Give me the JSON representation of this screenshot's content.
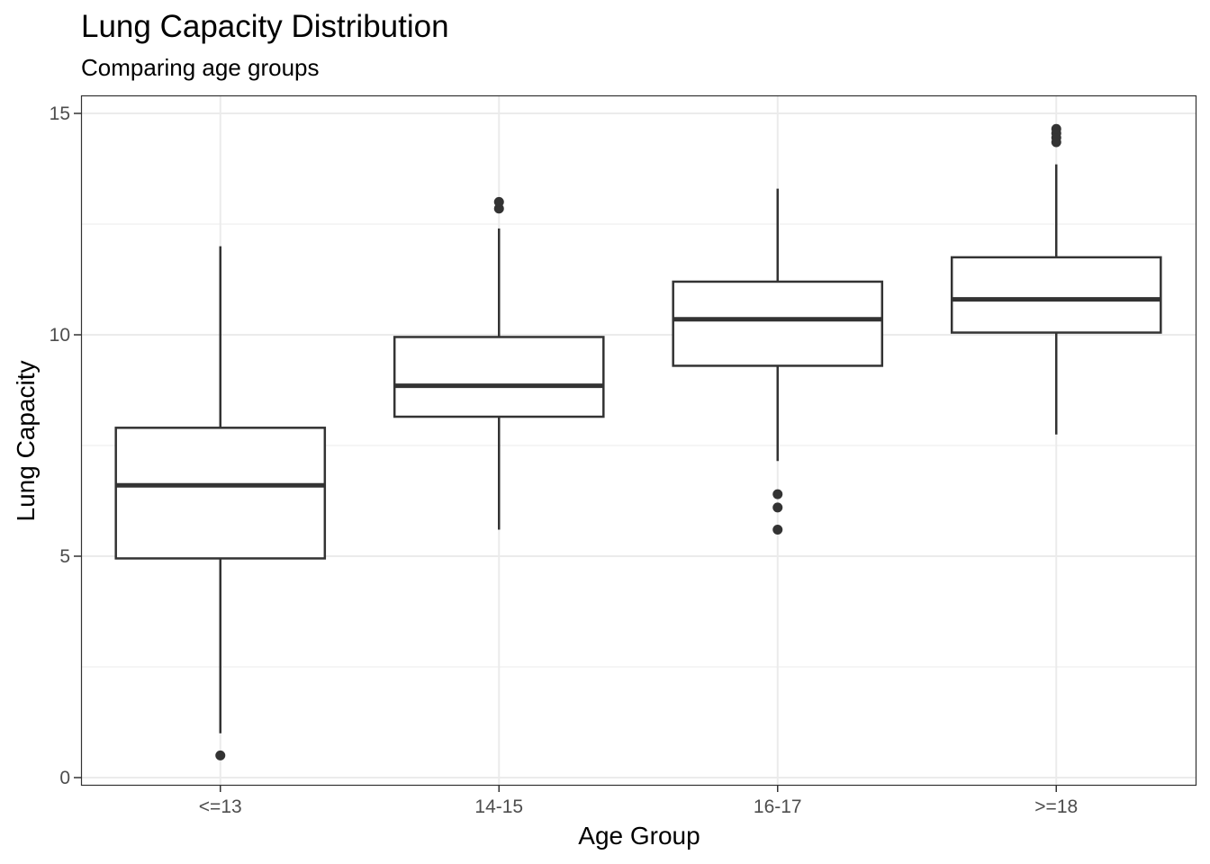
{
  "chart_data": {
    "type": "box",
    "title": "Lung Capacity Distribution",
    "subtitle": "Comparing age groups",
    "xlabel": "Age Group",
    "ylabel": "Lung Capacity",
    "ylim": [
      -0.25,
      15.35
    ],
    "y_ticks": [
      0,
      5,
      10,
      15
    ],
    "y_minor_ticks": [
      2.5,
      7.5,
      12.5
    ],
    "grid": true,
    "categories": [
      "<=13",
      "14-15",
      "16-17",
      ">=18"
    ],
    "boxes": [
      {
        "category": "<=13",
        "whisker_low": 1.0,
        "q1": 4.95,
        "median": 6.6,
        "q3": 7.9,
        "whisker_high": 12.0,
        "outliers": [
          0.5
        ]
      },
      {
        "category": "14-15",
        "whisker_low": 5.6,
        "q1": 8.15,
        "median": 8.85,
        "q3": 9.95,
        "whisker_high": 12.4,
        "outliers": [
          12.85,
          13.0
        ]
      },
      {
        "category": "16-17",
        "whisker_low": 7.15,
        "q1": 9.3,
        "median": 10.35,
        "q3": 11.2,
        "whisker_high": 13.3,
        "outliers": [
          5.6,
          6.1,
          6.4
        ]
      },
      {
        "category": ">=18",
        "whisker_low": 7.75,
        "q1": 10.05,
        "median": 10.8,
        "q3": 11.75,
        "whisker_high": 13.85,
        "outliers": [
          14.35,
          14.45,
          14.55,
          14.65
        ]
      }
    ],
    "colors": {
      "box_line": "#333333",
      "box_fill": "#ffffff",
      "grid": "#ebebeb",
      "panel_border": "#333333",
      "tick_text": "#4d4d4d"
    }
  }
}
